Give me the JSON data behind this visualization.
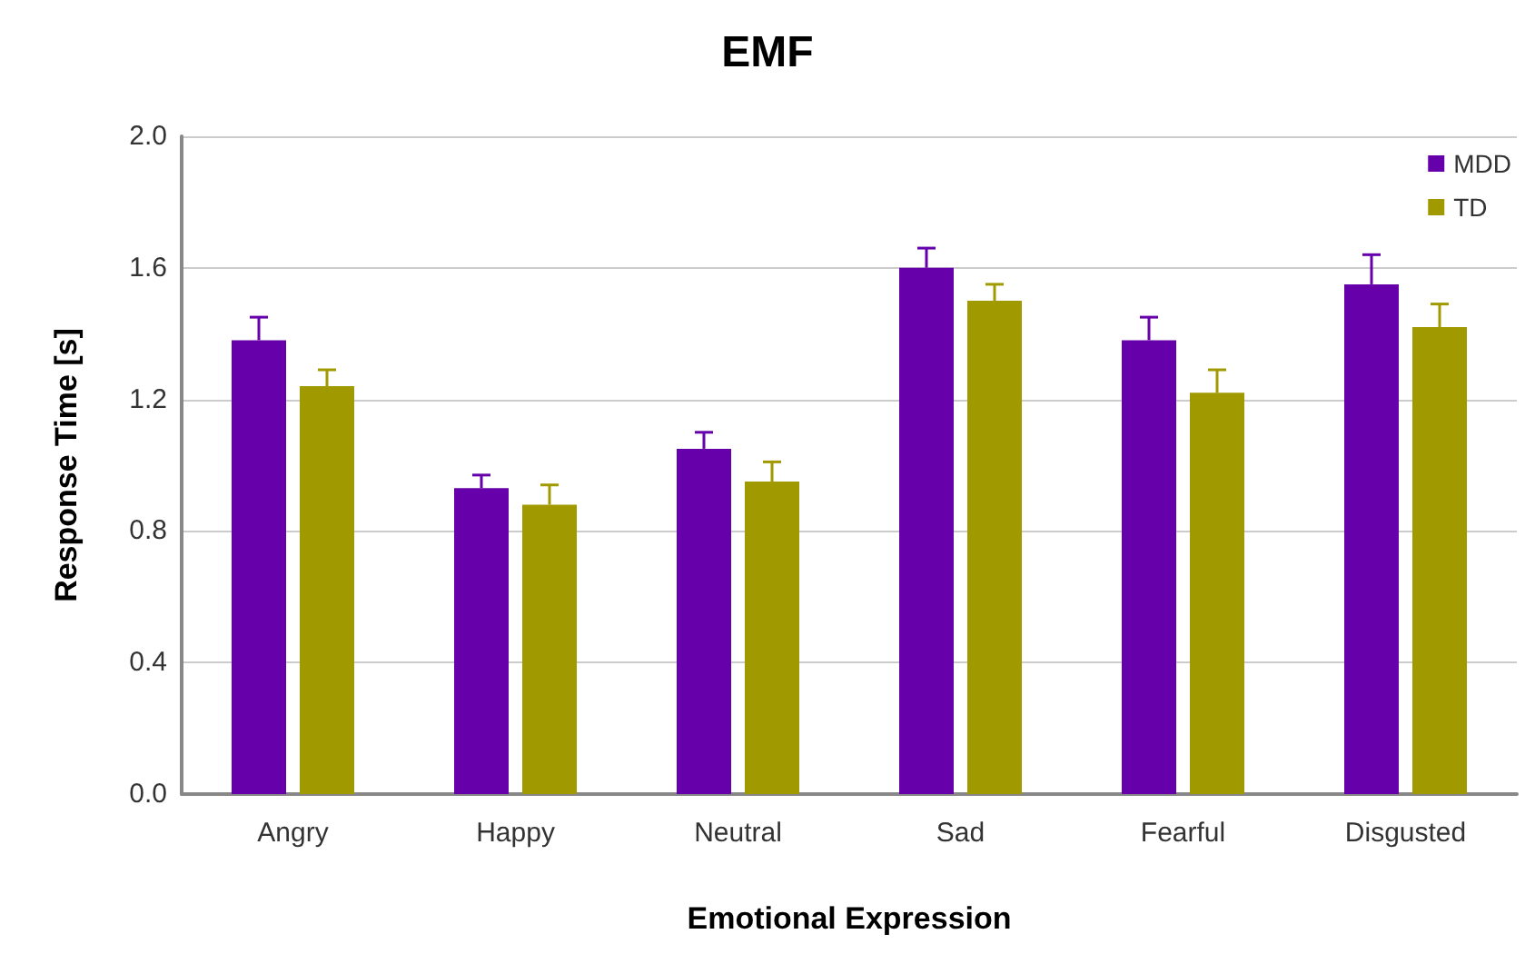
{
  "chart_data": {
    "type": "bar",
    "title": "EMF",
    "xlabel": "Emotional Expression",
    "ylabel": "Response Time [s]",
    "categories": [
      "Angry",
      "Happy",
      "Neutral",
      "Sad",
      "Fearful",
      "Disgusted"
    ],
    "series": [
      {
        "name": "MDD",
        "color": "#6600aa",
        "values": [
          1.38,
          0.93,
          1.05,
          1.6,
          1.38,
          1.55
        ],
        "errors": [
          [
            1.38,
            1.45
          ],
          [
            0.93,
            0.97
          ],
          [
            1.05,
            1.1
          ],
          [
            1.6,
            1.66
          ],
          [
            1.38,
            1.45
          ],
          [
            1.55,
            1.64
          ]
        ]
      },
      {
        "name": "TD",
        "color": "#a09a00",
        "values": [
          1.24,
          0.88,
          0.95,
          1.5,
          1.22,
          1.42
        ],
        "errors": [
          [
            1.24,
            1.29
          ],
          [
            0.88,
            0.94
          ],
          [
            0.95,
            1.01
          ],
          [
            1.5,
            1.55
          ],
          [
            1.22,
            1.29
          ],
          [
            1.42,
            1.49
          ]
        ]
      }
    ],
    "ylim": [
      0,
      2
    ],
    "yticks": [
      {
        "value": 0,
        "label": "0.0"
      },
      0.4,
      0.8,
      1.2,
      1.6,
      {
        "value": 2,
        "label": "2.0"
      }
    ],
    "grid": "y",
    "legend": "top right"
  }
}
